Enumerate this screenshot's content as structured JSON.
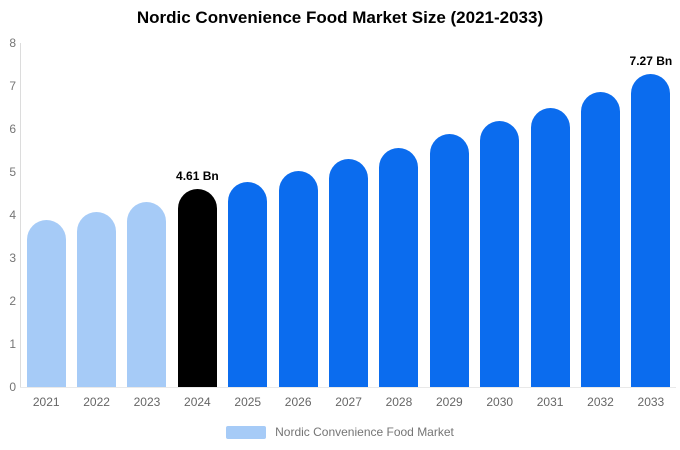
{
  "title": "Nordic Convenience Food Market Size (2021-2033)",
  "chart_data": {
    "type": "bar",
    "title": "Nordic Convenience Food Market Size (2021-2033)",
    "xlabel": "",
    "ylabel": "",
    "categories": [
      "2021",
      "2022",
      "2023",
      "2024",
      "2025",
      "2026",
      "2027",
      "2028",
      "2029",
      "2030",
      "2031",
      "2032",
      "2033"
    ],
    "values": [
      3.88,
      4.08,
      4.31,
      4.61,
      4.77,
      5.03,
      5.3,
      5.57,
      5.89,
      6.18,
      6.5,
      6.85,
      7.27
    ],
    "bar_labels": [
      "",
      "",
      "",
      "4.61 Bn",
      "",
      "",
      "",
      "",
      "",
      "",
      "",
      "",
      "7.27 Bn"
    ],
    "bar_colors": [
      "#A6CBF7",
      "#A6CBF7",
      "#A6CBF7",
      "#000000",
      "#0B6CEE",
      "#0B6CEE",
      "#0B6CEE",
      "#0B6CEE",
      "#0B6CEE",
      "#0B6CEE",
      "#0B6CEE",
      "#0B6CEE",
      "#0B6CEE"
    ],
    "ylim": [
      0,
      8
    ],
    "yticks": [
      0,
      1,
      2,
      3,
      4,
      5,
      6,
      7,
      8
    ],
    "grid": false,
    "legend": {
      "position": "bottom-center",
      "label": "Nordic Convenience Food Market",
      "swatch_color": "#A6CBF7"
    },
    "colors_meta": {
      "historical_bar": "#A6CBF7",
      "base_year_bar": "#000000",
      "forecast_bar": "#0B6CEE",
      "axis_line": "#dcdcdc",
      "tick_text": "#757575",
      "title_text": "#000000"
    }
  }
}
